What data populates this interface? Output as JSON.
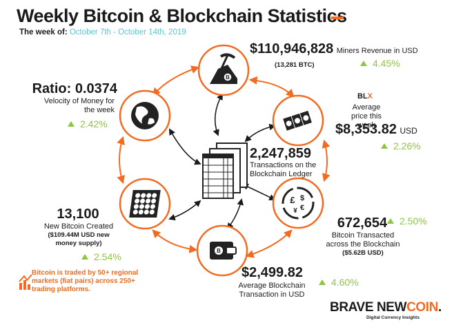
{
  "title": "Weekly Bitcoin & Blockchain Statistics",
  "week": {
    "label": "The week of:",
    "dates": "October 7th - October 14th, 2019"
  },
  "miners": {
    "value": "$110,946,828",
    "label": "Miners Revenue in USD",
    "sub": "(13,281 BTC)",
    "change": "4.45%"
  },
  "blx": {
    "brand_b": "BL",
    "brand_x": "X",
    "label": "Average price this week",
    "value": "$8,353.82",
    "unit": "USD",
    "change": "2.26%"
  },
  "transacted": {
    "value": "672,654",
    "label": "Bitcoin Transacted across the Blockchain",
    "sub": "($5.62B USD)",
    "change": "2.50%"
  },
  "avg_tx": {
    "value": "$2,499.82",
    "label": "Average Blockchain Transaction in USD",
    "change": "4.60%"
  },
  "created": {
    "value": "13,100",
    "label": "New Bitcoin Created",
    "sub": "($109.44M USD new money supply)",
    "change": "2.54%"
  },
  "ratio": {
    "value": "Ratio: 0.0374",
    "label": "Velocity of Money for the week",
    "change": "2.42%"
  },
  "ledger": {
    "value": "2,247,859",
    "label": "Transactions on the Blockchain Ledger"
  },
  "note": "Bitcoin is traded by 50+ regional markets (fiat pairs) across 250+ trading platforms.",
  "brand": {
    "a": "BRAVE NEW",
    "b": "COIN",
    "c": ".",
    "tagline": "Digital Currency Insights"
  },
  "colors": {
    "accent": "#f26b21",
    "up": "#8cc63f",
    "dates": "#5bc4d2"
  },
  "icons": [
    "pickaxe-icon",
    "banknotes-icon",
    "currency-exchange-icon",
    "wallet-icon",
    "coin-stack-icon",
    "globe-icon",
    "ledger-icon",
    "growth-chart-icon"
  ]
}
